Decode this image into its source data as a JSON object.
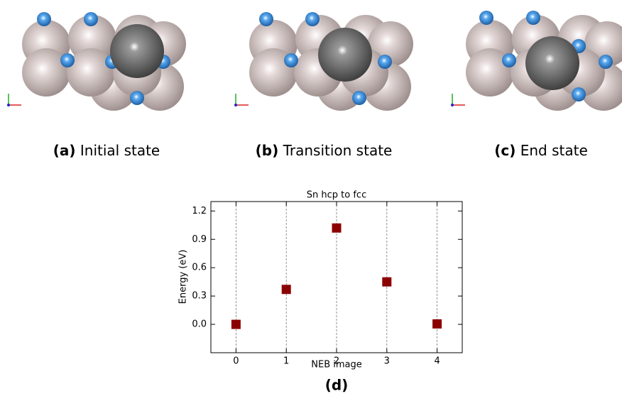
{
  "panels": [
    {
      "label": "(a)",
      "caption": "Initial state"
    },
    {
      "label": "(b)",
      "caption": "Transition state"
    },
    {
      "label": "(c)",
      "caption": "End state"
    }
  ],
  "chart_caption": "(d)",
  "chart_data": {
    "type": "scatter",
    "title": "Sn hcp to fcc",
    "x_label": "NEB image",
    "y_label": "Energy (eV)",
    "x": [
      0,
      1,
      2,
      3,
      4
    ],
    "series": [
      {
        "color": "#8b0000",
        "values": [
          0.0,
          0.37,
          1.02,
          0.45,
          0.005
        ]
      }
    ],
    "xlim": [
      -0.5,
      4.5
    ],
    "xticks": [
      0,
      1,
      2,
      3,
      4
    ],
    "ylim": [
      -0.3,
      1.3
    ],
    "yticks": [
      {
        "value": 0,
        "label": "0.0"
      },
      0.3,
      0.6,
      0.9,
      1.2
    ],
    "grid": "x"
  }
}
